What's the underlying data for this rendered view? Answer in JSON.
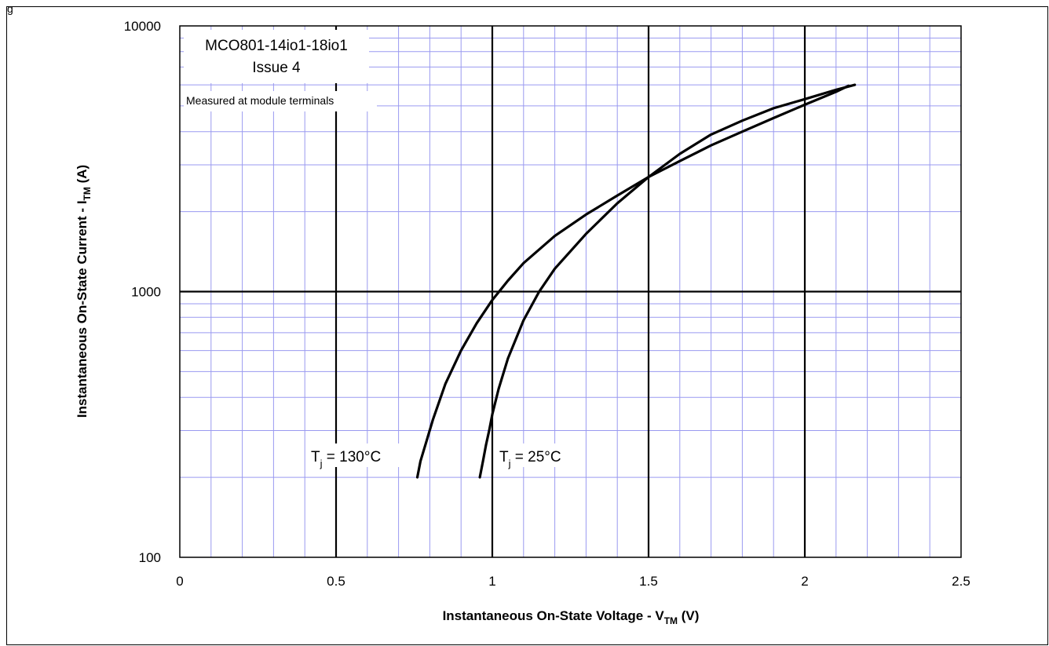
{
  "figure_label": "g",
  "chart_data": {
    "type": "line",
    "xlabel": {
      "main": "Instantaneous  On-State Voltage - V",
      "sub": "TM",
      "unit": " (V)"
    },
    "ylabel": {
      "main": "Instantaneous  On-State Current - I",
      "sub": "TM",
      "unit": " (A)"
    },
    "xlim": [
      0,
      2.5
    ],
    "ylim": [
      100,
      10000
    ],
    "yscale": "log",
    "grid": true,
    "x_ticks": [
      "0",
      "0.5",
      "1",
      "1.5",
      "2",
      "2.5"
    ],
    "y_ticks": [
      "100",
      "1000",
      "10000"
    ],
    "annotation": {
      "line1": "MCO801-14io1-18io1",
      "line2": "Issue 4",
      "note": "Measured at module terminals"
    },
    "series": [
      {
        "label": {
          "t": "T",
          "sub": "j",
          "rest": " = 130°C"
        },
        "x": [
          0.76,
          0.77,
          0.79,
          0.81,
          0.85,
          0.9,
          0.95,
          1.0,
          1.05,
          1.1,
          1.2,
          1.3,
          1.4,
          1.5,
          1.6,
          1.7,
          1.8,
          1.9,
          2.0,
          2.1,
          2.14
        ],
        "y": [
          200,
          230,
          275,
          330,
          450,
          600,
          760,
          930,
          1100,
          1280,
          1620,
          1950,
          2300,
          2700,
          3100,
          3550,
          4000,
          4500,
          5050,
          5650,
          5950
        ]
      },
      {
        "label": {
          "t": "T",
          "sub": "j",
          "rest": " = 25°C"
        },
        "x": [
          0.96,
          0.97,
          0.98,
          0.99,
          1.0,
          1.02,
          1.05,
          1.1,
          1.15,
          1.2,
          1.3,
          1.4,
          1.5,
          1.6,
          1.7,
          1.8,
          1.9,
          2.0,
          2.1,
          2.16
        ],
        "y": [
          200,
          230,
          265,
          300,
          345,
          430,
          560,
          780,
          1000,
          1220,
          1650,
          2150,
          2700,
          3300,
          3900,
          4400,
          4900,
          5300,
          5750,
          6000
        ]
      }
    ]
  }
}
